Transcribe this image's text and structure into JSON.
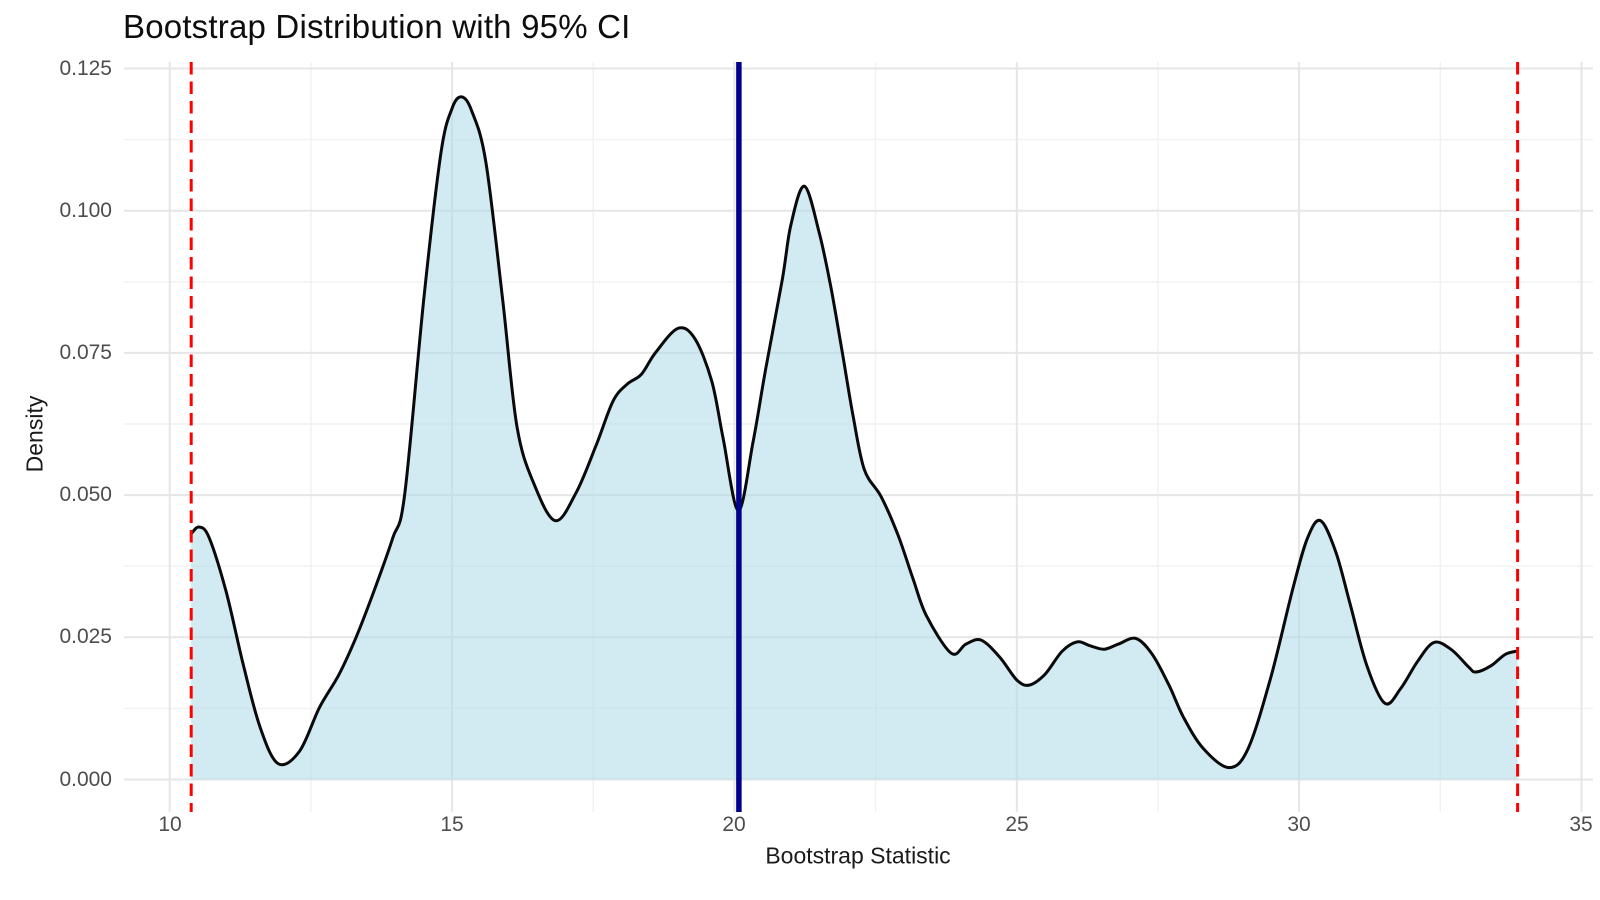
{
  "chart_data": {
    "type": "area",
    "title": "Bootstrap Distribution with 95% CI",
    "xlabel": "Bootstrap Statistic",
    "ylabel": "Density",
    "x_ticks": [
      10,
      15,
      20,
      25,
      30,
      35
    ],
    "x_tick_labels": [
      "10",
      "15",
      "20",
      "25",
      "30",
      "35"
    ],
    "x_minor_ticks": [
      12.5,
      17.5,
      22.5,
      27.5,
      32.5
    ],
    "y_ticks": [
      0,
      0.025,
      0.05,
      0.075,
      0.1,
      0.125
    ],
    "y_tick_labels": [
      "0.000",
      "0.025",
      "0.050",
      "0.075",
      "0.100",
      "0.125"
    ],
    "y_minor_ticks": [
      0.0125,
      0.0375,
      0.0625,
      0.0875,
      0.1125
    ],
    "xlim": [
      9.19,
      35.2
    ],
    "ylim": [
      -0.0057,
      0.1261
    ],
    "grid": true,
    "legend": false,
    "series": [
      {
        "name": "bootstrap_density",
        "kind": "kernel-density",
        "points": [
          [
            10.38,
            0.0432
          ],
          [
            10.52,
            0.0444
          ],
          [
            10.7,
            0.0425
          ],
          [
            11.0,
            0.033
          ],
          [
            11.3,
            0.0203
          ],
          [
            11.6,
            0.0092
          ],
          [
            11.92,
            0.0028
          ],
          [
            12.3,
            0.005
          ],
          [
            12.65,
            0.0126
          ],
          [
            13.0,
            0.0185
          ],
          [
            13.3,
            0.025
          ],
          [
            13.65,
            0.034
          ],
          [
            13.95,
            0.0425
          ],
          [
            14.16,
            0.05
          ],
          [
            14.5,
            0.0845
          ],
          [
            14.8,
            0.11
          ],
          [
            15.0,
            0.118
          ],
          [
            15.17,
            0.12
          ],
          [
            15.35,
            0.1175
          ],
          [
            15.6,
            0.1085
          ],
          [
            15.9,
            0.084
          ],
          [
            16.15,
            0.062
          ],
          [
            16.45,
            0.052
          ],
          [
            16.83,
            0.0455
          ],
          [
            17.2,
            0.0505
          ],
          [
            17.55,
            0.0587
          ],
          [
            17.85,
            0.0665
          ],
          [
            18.1,
            0.0695
          ],
          [
            18.35,
            0.0712
          ],
          [
            18.6,
            0.075
          ],
          [
            19.0,
            0.0793
          ],
          [
            19.3,
            0.0775
          ],
          [
            19.6,
            0.07
          ],
          [
            19.8,
            0.06
          ],
          [
            20.07,
            0.0473
          ],
          [
            20.33,
            0.0593
          ],
          [
            20.55,
            0.072
          ],
          [
            20.85,
            0.088
          ],
          [
            21.0,
            0.0975
          ],
          [
            21.24,
            0.1043
          ],
          [
            21.5,
            0.0962
          ],
          [
            21.7,
            0.087
          ],
          [
            21.9,
            0.0757
          ],
          [
            22.1,
            0.064
          ],
          [
            22.3,
            0.0545
          ],
          [
            22.6,
            0.0497
          ],
          [
            22.9,
            0.0429
          ],
          [
            23.16,
            0.0354
          ],
          [
            23.4,
            0.0288
          ],
          [
            23.84,
            0.0222
          ],
          [
            24.1,
            0.0238
          ],
          [
            24.37,
            0.0245
          ],
          [
            24.7,
            0.0215
          ],
          [
            25.0,
            0.0175
          ],
          [
            25.22,
            0.0166
          ],
          [
            25.5,
            0.0185
          ],
          [
            25.8,
            0.0225
          ],
          [
            26.07,
            0.0242
          ],
          [
            26.3,
            0.0235
          ],
          [
            26.55,
            0.0229
          ],
          [
            26.8,
            0.0238
          ],
          [
            27.11,
            0.0248
          ],
          [
            27.4,
            0.022
          ],
          [
            27.7,
            0.0165
          ],
          [
            27.95,
            0.011
          ],
          [
            28.3,
            0.0055
          ],
          [
            28.76,
            0.0021
          ],
          [
            29.1,
            0.0055
          ],
          [
            29.5,
            0.018
          ],
          [
            29.9,
            0.034
          ],
          [
            30.15,
            0.0425
          ],
          [
            30.38,
            0.0455
          ],
          [
            30.65,
            0.04
          ],
          [
            30.9,
            0.031
          ],
          [
            31.2,
            0.02
          ],
          [
            31.52,
            0.0134
          ],
          [
            31.8,
            0.016
          ],
          [
            32.1,
            0.0208
          ],
          [
            32.39,
            0.0241
          ],
          [
            32.7,
            0.0228
          ],
          [
            33.0,
            0.0198
          ],
          [
            33.13,
            0.0189
          ],
          [
            33.4,
            0.02
          ],
          [
            33.65,
            0.022
          ],
          [
            33.87,
            0.0226
          ]
        ]
      }
    ],
    "annotations": {
      "ci_lower": 10.38,
      "ci_upper": 33.87,
      "observed_statistic": 20.08,
      "ci_level": "95%"
    },
    "style": {
      "fill_color": "#ADD8E6",
      "fill_opacity": 0.55,
      "curve_color": "#0a0a0a",
      "ci_line_color": "#FF0000",
      "ci_line_style": "dashed",
      "stat_line_color": "#00008B",
      "grid_major_color": "#E6E6E6",
      "grid_minor_color": "#F1F1F1",
      "tick_label_color": "#4d4d4d",
      "title_color": "#0d0d0d"
    }
  }
}
